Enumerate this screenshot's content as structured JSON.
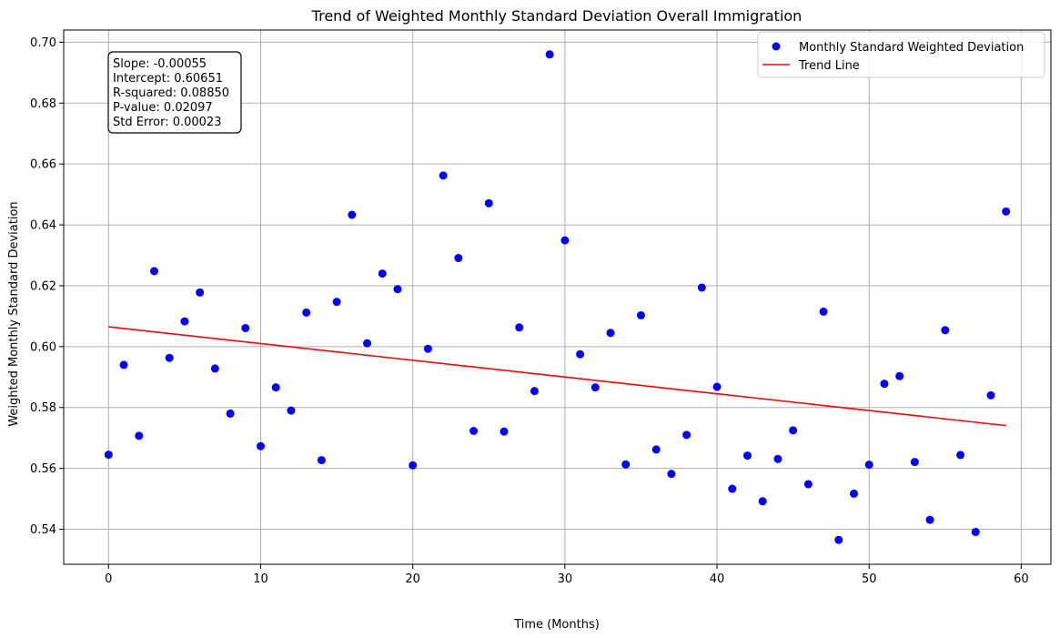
{
  "chart_data": {
    "type": "scatter",
    "title": "Trend of Weighted Monthly Standard Deviation Overall Immigration",
    "xlabel": "Time (Months)",
    "ylabel": "Weighted Monthly Standard Deviation",
    "xlim": [
      -2.95,
      61.95
    ],
    "ylim": [
      0.5285,
      0.704
    ],
    "xticks": [
      0,
      10,
      20,
      30,
      40,
      50,
      60
    ],
    "xtick_labels": [
      "0",
      "10",
      "20",
      "30",
      "40",
      "50",
      "60"
    ],
    "yticks": [
      0.54,
      0.56,
      0.58,
      0.6,
      0.62,
      0.64,
      0.66,
      0.68,
      0.7
    ],
    "ytick_labels": [
      "0.54",
      "0.56",
      "0.58",
      "0.60",
      "0.62",
      "0.64",
      "0.66",
      "0.68",
      "0.70"
    ],
    "grid": true,
    "legend_position": "top-right",
    "series": [
      {
        "name": "Monthly Standard Weighted Deviation",
        "kind": "scatter",
        "color": "#0000ff",
        "x": [
          0,
          1,
          2,
          3,
          4,
          5,
          6,
          7,
          8,
          9,
          10,
          11,
          12,
          13,
          14,
          15,
          16,
          17,
          18,
          19,
          20,
          21,
          22,
          23,
          24,
          25,
          26,
          27,
          28,
          29,
          30,
          31,
          32,
          33,
          34,
          35,
          36,
          37,
          38,
          39,
          40,
          41,
          42,
          43,
          44,
          45,
          46,
          47,
          48,
          49,
          50,
          51,
          52,
          53,
          54,
          55,
          56,
          57,
          58,
          59
        ],
        "y": [
          0.5645,
          0.594,
          0.5707,
          0.6248,
          0.5963,
          0.6083,
          0.6178,
          0.5928,
          0.578,
          0.6061,
          0.5673,
          0.5866,
          0.579,
          0.6112,
          0.5627,
          0.6147,
          0.6433,
          0.6011,
          0.624,
          0.6189,
          0.561,
          0.5993,
          0.6562,
          0.6291,
          0.5723,
          0.6471,
          0.5721,
          0.6063,
          0.5854,
          0.696,
          0.6349,
          0.5975,
          0.5866,
          0.6045,
          0.5613,
          0.6103,
          0.5662,
          0.5582,
          0.571,
          0.6194,
          0.5868,
          0.5533,
          0.5642,
          0.5492,
          0.5631,
          0.5725,
          0.5548,
          0.6115,
          0.5365,
          0.5517,
          0.5612,
          0.5878,
          0.5903,
          0.5621,
          0.5431,
          0.6054,
          0.5644,
          0.5391,
          0.584,
          0.6444
        ]
      },
      {
        "name": "Trend Line",
        "kind": "line",
        "color": "#ff0000",
        "x": [
          0,
          59
        ],
        "y": [
          0.60651,
          0.57406
        ]
      }
    ],
    "annotation": {
      "lines": [
        "Slope: -0.00055",
        "Intercept: 0.60651",
        "R-squared: 0.08850",
        "P-value: 0.02097",
        "Std Error: 0.00023"
      ]
    }
  }
}
